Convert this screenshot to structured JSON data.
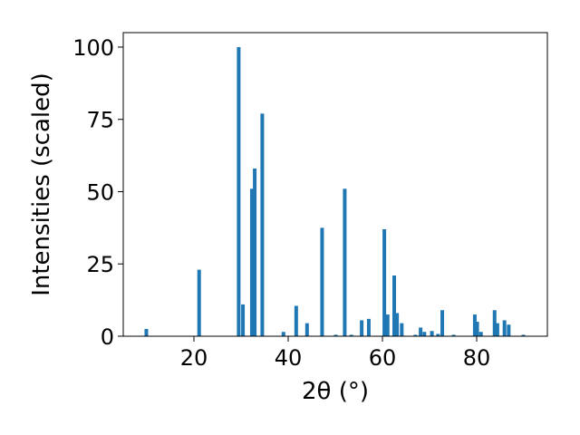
{
  "colors": {
    "bar": "#1f77b4",
    "axes": "#000000",
    "background": "#ffffff"
  },
  "chart_data": {
    "type": "bar",
    "xlabel": "2θ (°)",
    "ylabel": "Intensities (scaled)",
    "xlim": [
      5,
      95
    ],
    "ylim": [
      0,
      105
    ],
    "xticks": [
      20,
      40,
      60,
      80
    ],
    "yticks": [
      0,
      25,
      50,
      75,
      100
    ],
    "x_tick_labels": [
      "20",
      "40",
      "60",
      "80"
    ],
    "y_tick_labels": [
      "0",
      "25",
      "50",
      "75",
      "100"
    ],
    "grid": false,
    "x": [
      9.9,
      21.1,
      29.5,
      30.4,
      32.3,
      32.9,
      34.5,
      39.0,
      41.7,
      44.0,
      47.2,
      50.1,
      52.0,
      53.4,
      55.6,
      57.1,
      60.4,
      61.1,
      62.5,
      63.1,
      64.1,
      67.0,
      68.1,
      68.9,
      70.5,
      71.8,
      72.7,
      75.1,
      79.6,
      80.1,
      80.9,
      83.8,
      84.4,
      85.9,
      86.8,
      89.9
    ],
    "values": [
      2.5,
      23,
      100,
      11,
      51,
      58,
      77,
      1.5,
      10.5,
      4.5,
      37.5,
      0.5,
      51,
      0.5,
      5.5,
      6,
      37,
      7.5,
      21,
      8,
      4.5,
      0.5,
      3,
      1.5,
      1.8,
      0.8,
      9,
      0.5,
      7.5,
      5,
      1.5,
      9,
      4.5,
      5.5,
      4,
      0.5
    ]
  }
}
